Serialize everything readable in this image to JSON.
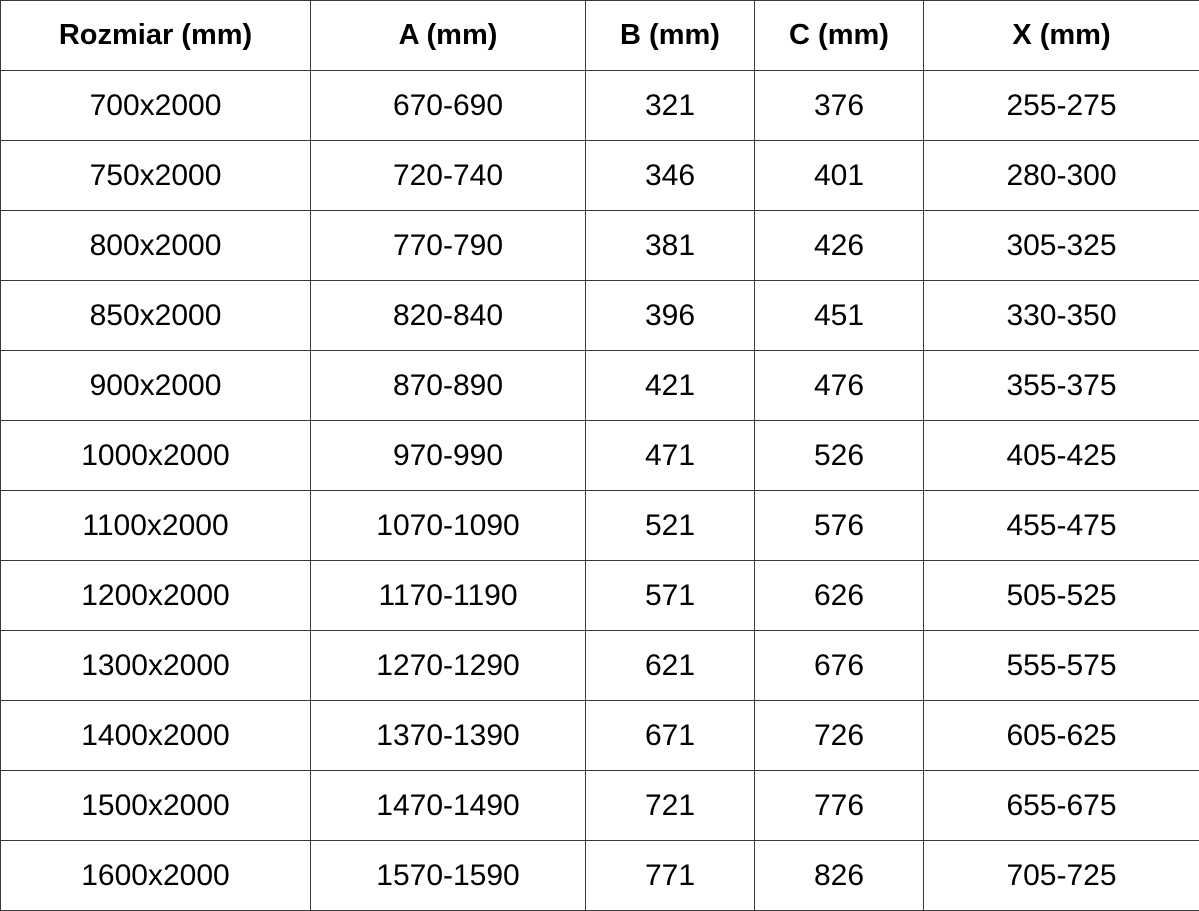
{
  "table": {
    "headers": [
      "Rozmiar (mm)",
      "A (mm)",
      "B (mm)",
      "C (mm)",
      "X (mm)"
    ],
    "rows": [
      [
        "700x2000",
        "670-690",
        "321",
        "376",
        "255-275"
      ],
      [
        "750x2000",
        "720-740",
        "346",
        "401",
        "280-300"
      ],
      [
        "800x2000",
        "770-790",
        "381",
        "426",
        "305-325"
      ],
      [
        "850x2000",
        "820-840",
        "396",
        "451",
        "330-350"
      ],
      [
        "900x2000",
        "870-890",
        "421",
        "476",
        "355-375"
      ],
      [
        "1000x2000",
        "970-990",
        "471",
        "526",
        "405-425"
      ],
      [
        "1100x2000",
        "1070-1090",
        "521",
        "576",
        "455-475"
      ],
      [
        "1200x2000",
        "1170-1190",
        "571",
        "626",
        "505-525"
      ],
      [
        "1300x2000",
        "1270-1290",
        "621",
        "676",
        "555-575"
      ],
      [
        "1400x2000",
        "1370-1390",
        "671",
        "726",
        "605-625"
      ],
      [
        "1500x2000",
        "1470-1490",
        "721",
        "776",
        "655-675"
      ],
      [
        "1600x2000",
        "1570-1590",
        "771",
        "826",
        "705-725"
      ]
    ]
  }
}
